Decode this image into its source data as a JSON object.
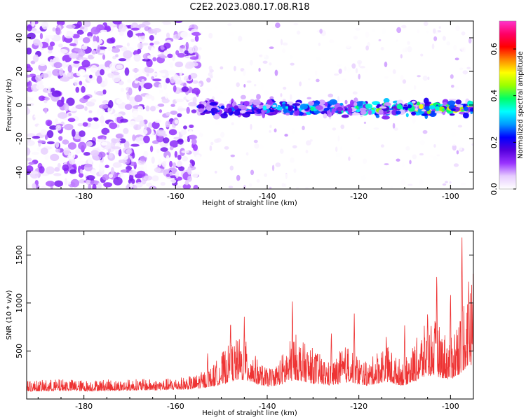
{
  "title": "C2E2.2023.080.17.08.R18",
  "chart_data": [
    {
      "type": "heatmap",
      "xlabel": "Height of straight line (km)",
      "ylabel": "Frequency (Hz)",
      "xlim": [
        -192.5,
        -95
      ],
      "ylim": [
        -50,
        50
      ],
      "x_ticks": [
        -180,
        -160,
        -140,
        -120,
        -100
      ],
      "y_ticks": [
        -40,
        -20,
        0,
        20,
        40
      ],
      "colorbar": {
        "label": "Normalized spectral amplitude",
        "range": [
          0,
          0.72
        ],
        "ticks": [
          0.0,
          0.2,
          0.4,
          0.6
        ],
        "tick_labels": [
          "0.0",
          "0.2",
          "0.4",
          "0.6"
        ],
        "colors": [
          "#ffffff",
          "#e6ccff",
          "#9933ff",
          "#5500dd",
          "#0000ff",
          "#0099ff",
          "#00ffff",
          "#00ff66",
          "#99ff00",
          "#ffff00",
          "#ff8800",
          "#ff0000",
          "#ff0066",
          "#ff33cc"
        ]
      },
      "features": [
        {
          "x_range": [
            -192.5,
            -155
          ],
          "freq_range": [
            -50,
            50
          ],
          "amplitude_max": 0.15
        },
        {
          "x_range": [
            -155,
            -95
          ],
          "freq_center": -2,
          "freq_halfwidth": 6,
          "amplitude_max": 0.55
        }
      ]
    },
    {
      "type": "line",
      "xlabel": "Height of straight line (km)",
      "ylabel": "SNR (10 * v/v)",
      "xlim": [
        -192.5,
        -95
      ],
      "ylim": [
        0,
        1750
      ],
      "x_ticks": [
        -180,
        -160,
        -140,
        -120,
        -100
      ],
      "y_ticks": [
        500,
        1000,
        1500
      ],
      "line_color": "#ee3333",
      "series": [
        {
          "x": [
            -192,
            -188,
            -184,
            -180,
            -176,
            -172,
            -168,
            -164,
            -160,
            -156,
            -152,
            -150,
            -148,
            -146,
            -144,
            -142,
            -140,
            -138,
            -136,
            -134,
            -132,
            -130,
            -128,
            -126,
            -124,
            -122,
            -120,
            -118,
            -116,
            -114,
            -112,
            -110,
            -108,
            -106,
            -104,
            -102,
            -100,
            -98,
            -96
          ],
          "values": [
            180,
            190,
            200,
            185,
            195,
            190,
            200,
            195,
            210,
            230,
            320,
            450,
            550,
            600,
            550,
            380,
            300,
            350,
            500,
            650,
            550,
            500,
            420,
            350,
            480,
            550,
            420,
            350,
            480,
            550,
            420,
            380,
            550,
            700,
            800,
            700,
            600,
            900,
            1250
          ]
        },
        {
          "x": [
            -192,
            -188,
            -184,
            -180,
            -176,
            -172,
            -168,
            -164,
            -160,
            -156,
            -152,
            -150,
            -148,
            -146,
            -144,
            -142,
            -140,
            -138,
            -136,
            -134,
            -132,
            -130,
            -128,
            -126,
            -124,
            -122,
            -120,
            -118,
            -116,
            -114,
            -112,
            -110,
            -108,
            -106,
            -104,
            -102,
            -100,
            -98,
            -96
          ],
          "values": [
            80,
            80,
            85,
            80,
            85,
            85,
            90,
            90,
            95,
            100,
            130,
            150,
            180,
            200,
            180,
            150,
            130,
            140,
            160,
            200,
            180,
            160,
            150,
            140,
            160,
            180,
            150,
            140,
            160,
            180,
            150,
            140,
            180,
            220,
            250,
            220,
            200,
            260,
            350
          ]
        }
      ],
      "peaks": [
        {
          "x": -153,
          "y": 500
        },
        {
          "x": -148,
          "y": 860
        },
        {
          "x": -145,
          "y": 870
        },
        {
          "x": -134.5,
          "y": 1070
        },
        {
          "x": -126,
          "y": 730
        },
        {
          "x": -121,
          "y": 890
        },
        {
          "x": -114,
          "y": 680
        },
        {
          "x": -110,
          "y": 780
        },
        {
          "x": -105,
          "y": 960
        },
        {
          "x": -103,
          "y": 1360
        },
        {
          "x": -100,
          "y": 1160
        },
        {
          "x": -97.5,
          "y": 1740
        },
        {
          "x": -96,
          "y": 1200
        }
      ]
    }
  ]
}
